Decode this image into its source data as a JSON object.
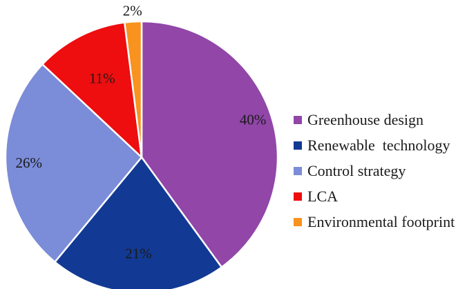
{
  "chart_data": {
    "type": "pie",
    "title": "",
    "categories": [
      "Greenhouse design",
      "Renewable  technology",
      "Control strategy",
      "LCA",
      "Environmental footprint"
    ],
    "values": [
      40,
      21,
      26,
      11,
      2
    ],
    "data_labels": [
      "40%",
      "21%",
      "26%",
      "11%",
      "2%"
    ],
    "colors": [
      "#9146A8",
      "#123A94",
      "#7B8CD8",
      "#EE0D0F",
      "#F7931E"
    ],
    "start_angle": "12 o'clock",
    "direction": "clockwise",
    "legend_placement": "right"
  }
}
